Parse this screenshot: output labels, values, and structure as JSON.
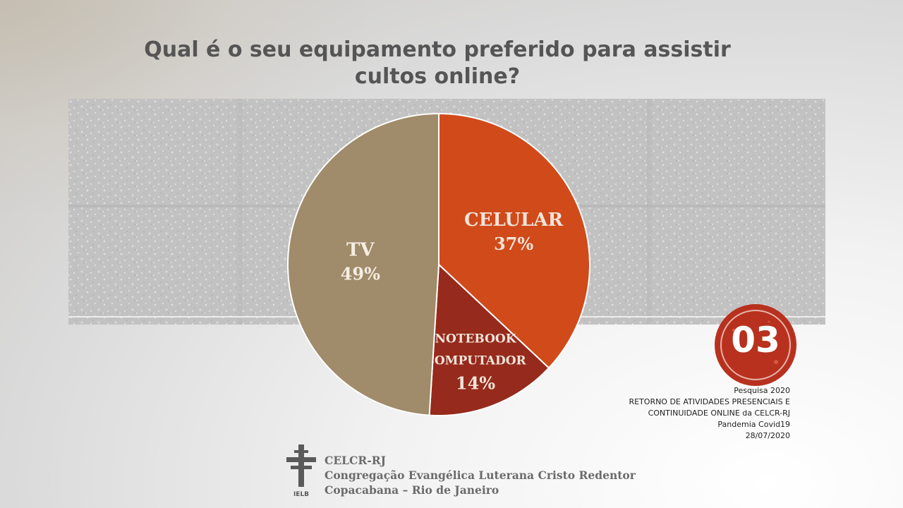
{
  "title_line1": "Qual é o seu equipamento preferido para assistir",
  "title_line2": "cultos online?",
  "chart_data": {
    "type": "pie",
    "title": "Qual é o seu equipamento preferido para assistir cultos online?",
    "slices": [
      {
        "label": "CELULAR",
        "value": 37,
        "display": "37%",
        "color": "#d14a1a"
      },
      {
        "label_lines": [
          "NOTEBOOK",
          "COMPUTADOR"
        ],
        "value": 14,
        "display": "14%",
        "color": "#962a1c"
      },
      {
        "label": "TV",
        "value": 49,
        "display": "49%",
        "color": "#a08b6a"
      }
    ],
    "start": "12 o'clock",
    "direction": "clockwise",
    "legend": "none"
  },
  "badge": {
    "text": "03",
    "color": "#b8311e"
  },
  "survey": {
    "line1": "Pesquisa 2020",
    "line2": "RETORNO DE ATIVIDADES PRESENCIAIS E",
    "line3": "CONTINUIDADE  ONLINE da CELCR-RJ",
    "line4": "Pandemia  Covid19",
    "line5": "28/07/2020"
  },
  "org": {
    "line1": "CELCR-RJ",
    "line2": "Congregação Evangélica Luterana Cristo Redentor",
    "line3": "Copacabana – Rio de Janeiro",
    "logo_text": "IELB"
  }
}
